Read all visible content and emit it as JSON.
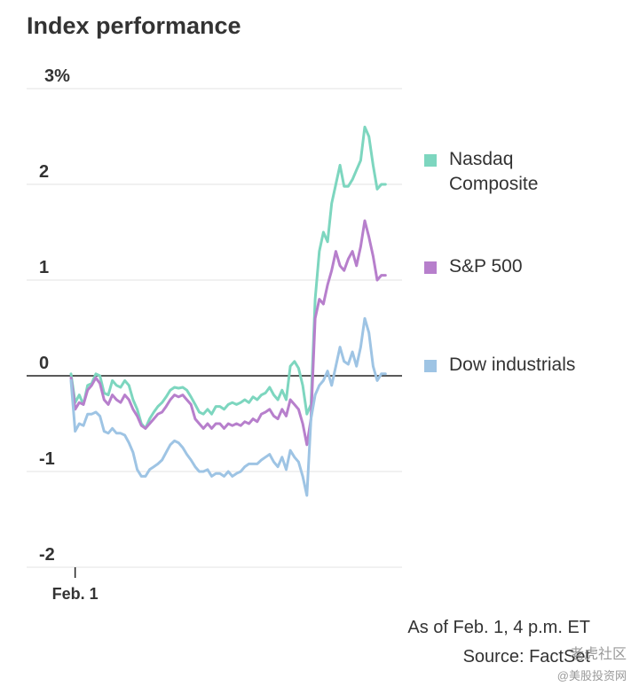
{
  "title": "Index performance",
  "footer": {
    "as_of": "As of Feb. 1, 4 p.m. ET",
    "source": "Source: FactSet"
  },
  "watermark": {
    "line1": "老虎社区",
    "line2": "@美股投资网"
  },
  "chart_data": {
    "type": "line",
    "title": "Index performance",
    "x_tick_labels": [
      "Feb. 1"
    ],
    "y_ticks": [
      {
        "value": 3,
        "label": "3%"
      },
      {
        "value": 2,
        "label": "2"
      },
      {
        "value": 1,
        "label": "1"
      },
      {
        "value": 0,
        "label": "0"
      },
      {
        "value": -1,
        "label": "-1"
      },
      {
        "value": -2,
        "label": "-2"
      }
    ],
    "ylim": [
      -2,
      3
    ],
    "x_steps": 80,
    "grid": true,
    "legend_position": "right",
    "series": [
      {
        "name": "Nasdaq Composite",
        "label_lines": [
          "Nasdaq",
          "Composite"
        ],
        "color": "#7dd6bf",
        "values": [
          [
            0,
            0.02
          ],
          [
            1,
            -0.28
          ],
          [
            2,
            -0.2
          ],
          [
            3,
            -0.3
          ],
          [
            4,
            -0.1
          ],
          [
            5,
            -0.08
          ],
          [
            6,
            0.02
          ],
          [
            7,
            0
          ],
          [
            8,
            -0.18
          ],
          [
            9,
            -0.2
          ],
          [
            10,
            -0.05
          ],
          [
            11,
            -0.1
          ],
          [
            12,
            -0.12
          ],
          [
            13,
            -0.05
          ],
          [
            14,
            -0.1
          ],
          [
            15,
            -0.25
          ],
          [
            16,
            -0.35
          ],
          [
            17,
            -0.5
          ],
          [
            18,
            -0.55
          ],
          [
            19,
            -0.45
          ],
          [
            20,
            -0.38
          ],
          [
            21,
            -0.32
          ],
          [
            22,
            -0.28
          ],
          [
            23,
            -0.22
          ],
          [
            24,
            -0.15
          ],
          [
            25,
            -0.12
          ],
          [
            26,
            -0.13
          ],
          [
            27,
            -0.12
          ],
          [
            28,
            -0.15
          ],
          [
            29,
            -0.22
          ],
          [
            30,
            -0.3
          ],
          [
            31,
            -0.38
          ],
          [
            32,
            -0.4
          ],
          [
            33,
            -0.35
          ],
          [
            34,
            -0.4
          ],
          [
            35,
            -0.32
          ],
          [
            36,
            -0.32
          ],
          [
            37,
            -0.35
          ],
          [
            38,
            -0.3
          ],
          [
            39,
            -0.28
          ],
          [
            40,
            -0.3
          ],
          [
            41,
            -0.28
          ],
          [
            42,
            -0.25
          ],
          [
            43,
            -0.28
          ],
          [
            44,
            -0.22
          ],
          [
            45,
            -0.25
          ],
          [
            46,
            -0.2
          ],
          [
            47,
            -0.18
          ],
          [
            48,
            -0.12
          ],
          [
            49,
            -0.2
          ],
          [
            50,
            -0.25
          ],
          [
            51,
            -0.15
          ],
          [
            52,
            -0.25
          ],
          [
            53,
            0.1
          ],
          [
            54,
            0.15
          ],
          [
            55,
            0.08
          ],
          [
            56,
            -0.1
          ],
          [
            57,
            -0.4
          ],
          [
            58,
            -0.3
          ],
          [
            59,
            0.8
          ],
          [
            60,
            1.3
          ],
          [
            61,
            1.5
          ],
          [
            62,
            1.4
          ],
          [
            63,
            1.8
          ],
          [
            64,
            2.0
          ],
          [
            65,
            2.2
          ],
          [
            66,
            1.98
          ],
          [
            67,
            1.98
          ],
          [
            68,
            2.05
          ],
          [
            69,
            2.15
          ],
          [
            70,
            2.25
          ],
          [
            71,
            2.6
          ],
          [
            72,
            2.5
          ],
          [
            73,
            2.2
          ],
          [
            74,
            1.95
          ],
          [
            75,
            2.0
          ],
          [
            76,
            2.0
          ]
        ]
      },
      {
        "name": "S&P 500",
        "label_lines": [
          "S&P 500"
        ],
        "color": "#b77fcc",
        "values": [
          [
            0,
            -0.02
          ],
          [
            1,
            -0.35
          ],
          [
            2,
            -0.28
          ],
          [
            3,
            -0.3
          ],
          [
            4,
            -0.15
          ],
          [
            5,
            -0.1
          ],
          [
            6,
            -0.02
          ],
          [
            7,
            -0.08
          ],
          [
            8,
            -0.25
          ],
          [
            9,
            -0.3
          ],
          [
            10,
            -0.2
          ],
          [
            11,
            -0.25
          ],
          [
            12,
            -0.28
          ],
          [
            13,
            -0.2
          ],
          [
            14,
            -0.25
          ],
          [
            15,
            -0.35
          ],
          [
            16,
            -0.42
          ],
          [
            17,
            -0.52
          ],
          [
            18,
            -0.55
          ],
          [
            19,
            -0.5
          ],
          [
            20,
            -0.45
          ],
          [
            21,
            -0.4
          ],
          [
            22,
            -0.38
          ],
          [
            23,
            -0.32
          ],
          [
            24,
            -0.25
          ],
          [
            25,
            -0.2
          ],
          [
            26,
            -0.22
          ],
          [
            27,
            -0.2
          ],
          [
            28,
            -0.25
          ],
          [
            29,
            -0.3
          ],
          [
            30,
            -0.45
          ],
          [
            31,
            -0.5
          ],
          [
            32,
            -0.55
          ],
          [
            33,
            -0.5
          ],
          [
            34,
            -0.55
          ],
          [
            35,
            -0.5
          ],
          [
            36,
            -0.5
          ],
          [
            37,
            -0.55
          ],
          [
            38,
            -0.5
          ],
          [
            39,
            -0.52
          ],
          [
            40,
            -0.5
          ],
          [
            41,
            -0.52
          ],
          [
            42,
            -0.48
          ],
          [
            43,
            -0.5
          ],
          [
            44,
            -0.45
          ],
          [
            45,
            -0.48
          ],
          [
            46,
            -0.4
          ],
          [
            47,
            -0.38
          ],
          [
            48,
            -0.35
          ],
          [
            49,
            -0.42
          ],
          [
            50,
            -0.45
          ],
          [
            51,
            -0.35
          ],
          [
            52,
            -0.42
          ],
          [
            53,
            -0.25
          ],
          [
            54,
            -0.3
          ],
          [
            55,
            -0.35
          ],
          [
            56,
            -0.5
          ],
          [
            57,
            -0.72
          ],
          [
            58,
            -0.45
          ],
          [
            59,
            0.6
          ],
          [
            60,
            0.8
          ],
          [
            61,
            0.75
          ],
          [
            62,
            0.95
          ],
          [
            63,
            1.1
          ],
          [
            64,
            1.3
          ],
          [
            65,
            1.15
          ],
          [
            66,
            1.1
          ],
          [
            67,
            1.22
          ],
          [
            68,
            1.3
          ],
          [
            69,
            1.15
          ],
          [
            70,
            1.35
          ],
          [
            71,
            1.62
          ],
          [
            72,
            1.45
          ],
          [
            73,
            1.25
          ],
          [
            74,
            1.0
          ],
          [
            75,
            1.05
          ],
          [
            76,
            1.05
          ]
        ]
      },
      {
        "name": "Dow industrials",
        "label_lines": [
          "Dow industrials"
        ],
        "color": "#9ec4e4",
        "values": [
          [
            0,
            -0.05
          ],
          [
            1,
            -0.58
          ],
          [
            2,
            -0.5
          ],
          [
            3,
            -0.52
          ],
          [
            4,
            -0.4
          ],
          [
            5,
            -0.4
          ],
          [
            6,
            -0.38
          ],
          [
            7,
            -0.42
          ],
          [
            8,
            -0.58
          ],
          [
            9,
            -0.6
          ],
          [
            10,
            -0.55
          ],
          [
            11,
            -0.6
          ],
          [
            12,
            -0.6
          ],
          [
            13,
            -0.62
          ],
          [
            14,
            -0.7
          ],
          [
            15,
            -0.8
          ],
          [
            16,
            -0.98
          ],
          [
            17,
            -1.05
          ],
          [
            18,
            -1.05
          ],
          [
            19,
            -0.98
          ],
          [
            20,
            -0.95
          ],
          [
            21,
            -0.92
          ],
          [
            22,
            -0.88
          ],
          [
            23,
            -0.8
          ],
          [
            24,
            -0.72
          ],
          [
            25,
            -0.68
          ],
          [
            26,
            -0.7
          ],
          [
            27,
            -0.75
          ],
          [
            28,
            -0.82
          ],
          [
            29,
            -0.88
          ],
          [
            30,
            -0.95
          ],
          [
            31,
            -1.0
          ],
          [
            32,
            -1.0
          ],
          [
            33,
            -0.98
          ],
          [
            34,
            -1.05
          ],
          [
            35,
            -1.02
          ],
          [
            36,
            -1.02
          ],
          [
            37,
            -1.05
          ],
          [
            38,
            -1.0
          ],
          [
            39,
            -1.05
          ],
          [
            40,
            -1.02
          ],
          [
            41,
            -1.0
          ],
          [
            42,
            -0.95
          ],
          [
            43,
            -0.92
          ],
          [
            44,
            -0.92
          ],
          [
            45,
            -0.92
          ],
          [
            46,
            -0.88
          ],
          [
            47,
            -0.85
          ],
          [
            48,
            -0.82
          ],
          [
            49,
            -0.9
          ],
          [
            50,
            -0.95
          ],
          [
            51,
            -0.85
          ],
          [
            52,
            -0.98
          ],
          [
            53,
            -0.78
          ],
          [
            54,
            -0.85
          ],
          [
            55,
            -0.9
          ],
          [
            56,
            -1.05
          ],
          [
            57,
            -1.25
          ],
          [
            58,
            -0.45
          ],
          [
            59,
            -0.2
          ],
          [
            60,
            -0.1
          ],
          [
            61,
            -0.05
          ],
          [
            62,
            0.05
          ],
          [
            63,
            -0.1
          ],
          [
            64,
            0.1
          ],
          [
            65,
            0.3
          ],
          [
            66,
            0.15
          ],
          [
            67,
            0.12
          ],
          [
            68,
            0.25
          ],
          [
            69,
            0.1
          ],
          [
            70,
            0.3
          ],
          [
            71,
            0.6
          ],
          [
            72,
            0.45
          ],
          [
            73,
            0.1
          ],
          [
            74,
            -0.05
          ],
          [
            75,
            0.02
          ],
          [
            76,
            0.02
          ]
        ]
      }
    ]
  }
}
